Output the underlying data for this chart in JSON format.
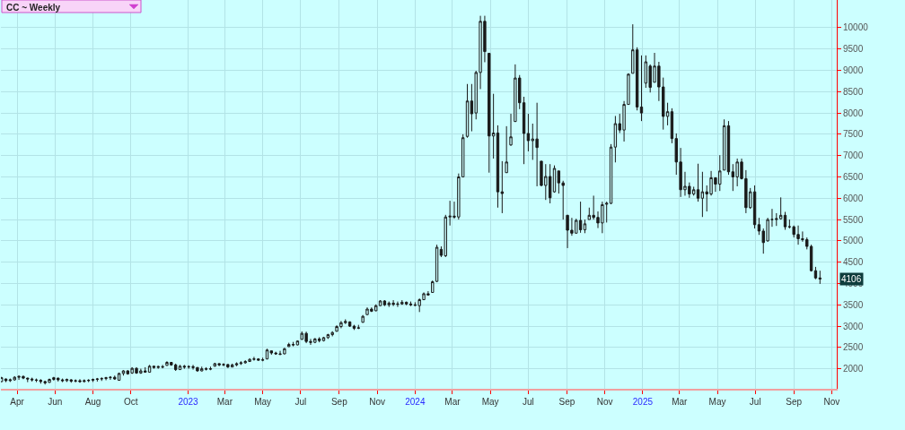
{
  "chart_data": {
    "type": "candlestick",
    "title": "CC ~ Weekly",
    "color": "#1a1a1a",
    "grid": true,
    "xlim": [
      "2022-03-06",
      "2025-11-09"
    ],
    "ylim": [
      1530,
      10650
    ],
    "xticks": [
      {
        "value": "2022-04-01",
        "label": "Apr"
      },
      {
        "value": "2022-06-01",
        "label": "Jun"
      },
      {
        "value": "2022-08-01",
        "label": "Aug"
      },
      {
        "value": "2022-10-01",
        "label": "Oct"
      },
      {
        "value": "2023-01-01",
        "label": "2023"
      },
      {
        "value": "2023-03-01",
        "label": "Mar"
      },
      {
        "value": "2023-05-01",
        "label": "May"
      },
      {
        "value": "2023-07-01",
        "label": "Jul"
      },
      {
        "value": "2023-09-01",
        "label": "Sep"
      },
      {
        "value": "2023-11-01",
        "label": "Nov"
      },
      {
        "value": "2024-01-01",
        "label": "2024"
      },
      {
        "value": "2024-03-01",
        "label": "Mar"
      },
      {
        "value": "2024-05-01",
        "label": "May"
      },
      {
        "value": "2024-07-01",
        "label": "Jul"
      },
      {
        "value": "2024-09-01",
        "label": "Sep"
      },
      {
        "value": "2024-11-01",
        "label": "Nov"
      },
      {
        "value": "2025-01-01",
        "label": "2025"
      },
      {
        "value": "2025-03-01",
        "label": "Mar"
      },
      {
        "value": "2025-05-01",
        "label": "May"
      },
      {
        "value": "2025-07-01",
        "label": "Jul"
      },
      {
        "value": "2025-09-01",
        "label": "Sep"
      },
      {
        "value": "2025-11-01",
        "label": "Nov"
      }
    ],
    "yticks": [
      2000,
      2500,
      3000,
      3500,
      4000,
      4500,
      5000,
      5500,
      6000,
      6500,
      7000,
      7500,
      8000,
      8500,
      9000,
      9500,
      10000
    ],
    "annotations": [
      "4106"
    ],
    "x": [
      "2022-03-07",
      "2022-03-14",
      "2022-03-21",
      "2022-03-28",
      "2022-04-04",
      "2022-04-11",
      "2022-04-18",
      "2022-04-25",
      "2022-05-02",
      "2022-05-09",
      "2022-05-16",
      "2022-05-23",
      "2022-05-30",
      "2022-06-06",
      "2022-06-13",
      "2022-06-20",
      "2022-06-27",
      "2022-07-04",
      "2022-07-11",
      "2022-07-18",
      "2022-07-25",
      "2022-08-01",
      "2022-08-08",
      "2022-08-15",
      "2022-08-22",
      "2022-08-29",
      "2022-09-05",
      "2022-09-12",
      "2022-09-19",
      "2022-09-26",
      "2022-10-03",
      "2022-10-10",
      "2022-10-17",
      "2022-10-24",
      "2022-10-31",
      "2022-11-07",
      "2022-11-14",
      "2022-11-21",
      "2022-11-28",
      "2022-12-05",
      "2022-12-12",
      "2022-12-19",
      "2022-12-26",
      "2023-01-02",
      "2023-01-09",
      "2023-01-16",
      "2023-01-23",
      "2023-01-30",
      "2023-02-06",
      "2023-02-13",
      "2023-02-20",
      "2023-02-27",
      "2023-03-06",
      "2023-03-13",
      "2023-03-20",
      "2023-03-27",
      "2023-04-03",
      "2023-04-10",
      "2023-04-17",
      "2023-04-24",
      "2023-05-01",
      "2023-05-08",
      "2023-05-15",
      "2023-05-22",
      "2023-05-29",
      "2023-06-05",
      "2023-06-12",
      "2023-06-19",
      "2023-06-26",
      "2023-07-03",
      "2023-07-10",
      "2023-07-17",
      "2023-07-24",
      "2023-07-31",
      "2023-08-07",
      "2023-08-14",
      "2023-08-21",
      "2023-08-28",
      "2023-09-04",
      "2023-09-11",
      "2023-09-18",
      "2023-09-25",
      "2023-10-02",
      "2023-10-09",
      "2023-10-16",
      "2023-10-23",
      "2023-10-30",
      "2023-11-06",
      "2023-11-13",
      "2023-11-20",
      "2023-11-27",
      "2023-12-04",
      "2023-12-11",
      "2023-12-18",
      "2023-12-25",
      "2024-01-01",
      "2024-01-08",
      "2024-01-15",
      "2024-01-22",
      "2024-01-29",
      "2024-02-05",
      "2024-02-12",
      "2024-02-19",
      "2024-02-26",
      "2024-03-04",
      "2024-03-11",
      "2024-03-18",
      "2024-03-25",
      "2024-04-01",
      "2024-04-08",
      "2024-04-15",
      "2024-04-22",
      "2024-04-29",
      "2024-05-06",
      "2024-05-13",
      "2024-05-20",
      "2024-05-27",
      "2024-06-03",
      "2024-06-10",
      "2024-06-17",
      "2024-06-24",
      "2024-07-01",
      "2024-07-08",
      "2024-07-15",
      "2024-07-22",
      "2024-07-29",
      "2024-08-05",
      "2024-08-12",
      "2024-08-19",
      "2024-08-26",
      "2024-09-02",
      "2024-09-09",
      "2024-09-16",
      "2024-09-23",
      "2024-09-30",
      "2024-10-07",
      "2024-10-14",
      "2024-10-21",
      "2024-10-28",
      "2024-11-04",
      "2024-11-11",
      "2024-11-18",
      "2024-11-25",
      "2024-12-02",
      "2024-12-09",
      "2024-12-16",
      "2024-12-23",
      "2024-12-30",
      "2025-01-06",
      "2025-01-13",
      "2025-01-20",
      "2025-01-27",
      "2025-02-03",
      "2025-02-10",
      "2025-02-17",
      "2025-02-24",
      "2025-03-03",
      "2025-03-10",
      "2025-03-17",
      "2025-03-24",
      "2025-03-31",
      "2025-04-07",
      "2025-04-14",
      "2025-04-21",
      "2025-04-28",
      "2025-05-05",
      "2025-05-12",
      "2025-05-19",
      "2025-05-26",
      "2025-06-02",
      "2025-06-09",
      "2025-06-16",
      "2025-06-23",
      "2025-06-30",
      "2025-07-07",
      "2025-07-14",
      "2025-07-21",
      "2025-07-28",
      "2025-08-04",
      "2025-08-11",
      "2025-08-18",
      "2025-08-25",
      "2025-09-01",
      "2025-09-08",
      "2025-09-15",
      "2025-09-22",
      "2025-09-29",
      "2025-10-06",
      "2025-10-13"
    ],
    "ohlc": [
      [
        1700,
        1810,
        1686,
        1790
      ],
      [
        1760,
        1770,
        1686,
        1720
      ],
      [
        1720,
        1770,
        1690,
        1740
      ],
      [
        1740,
        1826,
        1721,
        1800
      ],
      [
        1800,
        1840,
        1740,
        1820
      ],
      [
        1820,
        1840,
        1756,
        1780
      ],
      [
        1780,
        1791,
        1686,
        1760
      ],
      [
        1760,
        1791,
        1700,
        1740
      ],
      [
        1740,
        1770,
        1686,
        1730
      ],
      [
        1730,
        1756,
        1651,
        1700
      ],
      [
        1700,
        1721,
        1630,
        1670
      ],
      [
        1680,
        1770,
        1672,
        1750
      ],
      [
        1750,
        1810,
        1721,
        1790
      ],
      [
        1780,
        1791,
        1700,
        1740
      ],
      [
        1740,
        1770,
        1686,
        1720
      ],
      [
        1720,
        1770,
        1690,
        1750
      ],
      [
        1740,
        1756,
        1672,
        1710
      ],
      [
        1710,
        1750,
        1680,
        1720
      ],
      [
        1720,
        1756,
        1672,
        1700
      ],
      [
        1700,
        1750,
        1680,
        1720
      ],
      [
        1720,
        1756,
        1686,
        1730
      ],
      [
        1730,
        1770,
        1690,
        1750
      ],
      [
        1750,
        1784,
        1700,
        1760
      ],
      [
        1760,
        1800,
        1714,
        1770
      ],
      [
        1770,
        1810,
        1730,
        1790
      ],
      [
        1790,
        1826,
        1740,
        1800
      ],
      [
        1800,
        1840,
        1740,
        1760
      ],
      [
        1730,
        1910,
        1720,
        1890
      ],
      [
        1890,
        1966,
        1840,
        1950
      ],
      [
        1950,
        1966,
        1861,
        1880
      ],
      [
        1900,
        2036,
        1880,
        2010
      ],
      [
        2010,
        2036,
        1880,
        1900
      ],
      [
        1900,
        2001,
        1880,
        1950
      ],
      [
        1950,
        2036,
        1910,
        1920
      ],
      [
        1920,
        2090,
        1910,
        2060
      ],
      [
        2060,
        2070,
        2001,
        2030
      ],
      [
        2030,
        2070,
        2001,
        2050
      ],
      [
        2050,
        2090,
        2010,
        2040
      ],
      [
        2080,
        2176,
        2070,
        2150
      ],
      [
        2150,
        2160,
        2070,
        2090
      ],
      [
        2090,
        2120,
        1950,
        1980
      ],
      [
        1980,
        2090,
        1980,
        2060
      ],
      [
        2060,
        2090,
        2000,
        2040
      ],
      [
        2040,
        2080,
        2000,
        2050
      ],
      [
        2050,
        2090,
        1980,
        2030
      ],
      [
        2030,
        2036,
        1931,
        1950
      ],
      [
        1950,
        2050,
        1940,
        2000
      ],
      [
        2000,
        2036,
        1960,
        1990
      ],
      [
        1990,
        2050,
        1966,
        2000
      ],
      [
        2060,
        2140,
        2050,
        2120
      ],
      [
        2120,
        2130,
        2060,
        2090
      ],
      [
        2090,
        2130,
        2060,
        2100
      ],
      [
        2100,
        2110,
        2020,
        2040
      ],
      [
        2040,
        2120,
        2036,
        2090
      ],
      [
        2090,
        2150,
        2060,
        2120
      ],
      [
        2120,
        2176,
        2090,
        2140
      ],
      [
        2140,
        2200,
        2120,
        2170
      ],
      [
        2170,
        2246,
        2160,
        2220
      ],
      [
        2220,
        2280,
        2190,
        2230
      ],
      [
        2230,
        2246,
        2190,
        2200
      ],
      [
        2200,
        2260,
        2176,
        2210
      ],
      [
        2230,
        2470,
        2220,
        2440
      ],
      [
        2420,
        2420,
        2330,
        2370
      ],
      [
        2370,
        2400,
        2330,
        2350
      ],
      [
        2350,
        2420,
        2316,
        2340
      ],
      [
        2350,
        2490,
        2340,
        2470
      ],
      [
        2520,
        2610,
        2510,
        2570
      ],
      [
        2570,
        2630,
        2526,
        2560
      ],
      [
        2560,
        2666,
        2550,
        2650
      ],
      [
        2690,
        2876,
        2680,
        2830
      ],
      [
        2830,
        2870,
        2600,
        2640
      ],
      [
        2640,
        2700,
        2560,
        2620
      ],
      [
        2620,
        2720,
        2600,
        2700
      ],
      [
        2700,
        2740,
        2620,
        2660
      ],
      [
        2660,
        2750,
        2640,
        2730
      ],
      [
        2730,
        2820,
        2700,
        2800
      ],
      [
        2800,
        2880,
        2760,
        2850
      ],
      [
        2880,
        3020,
        2870,
        2990
      ],
      [
        2990,
        3120,
        2950,
        3080
      ],
      [
        3080,
        3160,
        3050,
        3110
      ],
      [
        3100,
        3110,
        2980,
        3000
      ],
      [
        3000,
        3030,
        2910,
        2950
      ],
      [
        2950,
        3030,
        2930,
        2960
      ],
      [
        3090,
        3260,
        3080,
        3230
      ],
      [
        3270,
        3440,
        3260,
        3400
      ],
      [
        3400,
        3440,
        3330,
        3350
      ],
      [
        3360,
        3510,
        3350,
        3480
      ],
      [
        3480,
        3610,
        3470,
        3590
      ],
      [
        3590,
        3610,
        3470,
        3500
      ],
      [
        3500,
        3577,
        3450,
        3540
      ],
      [
        3540,
        3610,
        3470,
        3510
      ],
      [
        3510,
        3577,
        3450,
        3520
      ],
      [
        3520,
        3610,
        3500,
        3560
      ],
      [
        3560,
        3577,
        3490,
        3520
      ],
      [
        3520,
        3577,
        3470,
        3500
      ],
      [
        3500,
        3560,
        3470,
        3490
      ],
      [
        3480,
        3650,
        3330,
        3620
      ],
      [
        3620,
        3790,
        3610,
        3760
      ],
      [
        3760,
        3820,
        3720,
        3730
      ],
      [
        3790,
        4070,
        3780,
        4040
      ],
      [
        4050,
        4910,
        4030,
        4850
      ],
      [
        4800,
        4870,
        4620,
        4660
      ],
      [
        4650,
        5610,
        4620,
        5560
      ],
      [
        5560,
        5940,
        5360,
        5580
      ],
      [
        5580,
        5920,
        5520,
        5560
      ],
      [
        5560,
        6580,
        5500,
        6500
      ],
      [
        6500,
        7500,
        6490,
        7420
      ],
      [
        7450,
        8680,
        7420,
        8280
      ],
      [
        8280,
        8680,
        7570,
        7980
      ],
      [
        8000,
        8990,
        7850,
        8950
      ],
      [
        8950,
        10280,
        8560,
        10150
      ],
      [
        10150,
        10280,
        9190,
        9440
      ],
      [
        9400,
        9410,
        6600,
        7460
      ],
      [
        7460,
        8450,
        6930,
        7530
      ],
      [
        7530,
        7710,
        5780,
        6150
      ],
      [
        6150,
        6870,
        5650,
        6110
      ],
      [
        6600,
        7690,
        6600,
        6850
      ],
      [
        7250,
        7980,
        7230,
        7440
      ],
      [
        7800,
        9140,
        7790,
        8820
      ],
      [
        8820,
        8890,
        8090,
        8240
      ],
      [
        8240,
        8380,
        6800,
        7520
      ],
      [
        7520,
        7980,
        7100,
        7350
      ],
      [
        7350,
        7750,
        6900,
        7390
      ],
      [
        7390,
        8240,
        6280,
        7190
      ],
      [
        6870,
        6870,
        6280,
        6300
      ],
      [
        6300,
        6800,
        5960,
        6510
      ],
      [
        6510,
        6800,
        5880,
        6010
      ],
      [
        6150,
        6770,
        6130,
        6700
      ],
      [
        6640,
        6640,
        6110,
        6360
      ],
      [
        6360,
        6410,
        5500,
        6300
      ],
      [
        5600,
        5610,
        4830,
        5250
      ],
      [
        5250,
        5540,
        5120,
        5180
      ],
      [
        5180,
        5520,
        5180,
        5480
      ],
      [
        5480,
        5920,
        5190,
        5260
      ],
      [
        5260,
        5500,
        5180,
        5400
      ],
      [
        5500,
        5780,
        5500,
        5600
      ],
      [
        5600,
        6060,
        5500,
        5550
      ],
      [
        5550,
        5690,
        5300,
        5420
      ],
      [
        5420,
        5920,
        5180,
        5850
      ],
      [
        5860,
        5920,
        5430,
        5880
      ],
      [
        5880,
        7270,
        5860,
        7200
      ],
      [
        7200,
        7930,
        6840,
        7750
      ],
      [
        7750,
        7980,
        7530,
        7600
      ],
      [
        7600,
        8280,
        7330,
        8200
      ],
      [
        8200,
        8930,
        8200,
        8910
      ],
      [
        8930,
        10080,
        8930,
        9480
      ],
      [
        9480,
        9540,
        8060,
        8140
      ],
      [
        8140,
        9350,
        7810,
        8000
      ],
      [
        8700,
        9350,
        8590,
        9200
      ],
      [
        9100,
        9140,
        8480,
        8600
      ],
      [
        8720,
        9410,
        8720,
        9100
      ],
      [
        9100,
        9200,
        8280,
        8610
      ],
      [
        8610,
        8830,
        7610,
        7920
      ],
      [
        7920,
        8240,
        7710,
        8030
      ],
      [
        8030,
        8110,
        7290,
        7400
      ],
      [
        7400,
        7520,
        6550,
        6850
      ],
      [
        6850,
        7180,
        6030,
        6200
      ],
      [
        6200,
        6620,
        6060,
        6280
      ],
      [
        6280,
        6370,
        6010,
        6100
      ],
      [
        6100,
        6270,
        6060,
        6200
      ],
      [
        6200,
        6810,
        5920,
        6000
      ],
      [
        6000,
        6620,
        5560,
        6150
      ],
      [
        6150,
        6300,
        5690,
        6100
      ],
      [
        6100,
        6640,
        6060,
        6480
      ],
      [
        6480,
        6480,
        6150,
        6330
      ],
      [
        6330,
        7010,
        6170,
        6640
      ],
      [
        6660,
        7850,
        6660,
        7700
      ],
      [
        7700,
        7810,
        6550,
        6620
      ],
      [
        6620,
        6800,
        6170,
        6500
      ],
      [
        6500,
        6930,
        6280,
        6850
      ],
      [
        6850,
        6930,
        6440,
        6460
      ],
      [
        6460,
        6660,
        5650,
        5780
      ],
      [
        5780,
        6240,
        5750,
        6150
      ],
      [
        6150,
        6300,
        5290,
        5380
      ],
      [
        5380,
        5540,
        5140,
        5230
      ],
      [
        5230,
        5290,
        4700,
        4960
      ],
      [
        5000,
        5540,
        4980,
        5500
      ],
      [
        5500,
        5750,
        5330,
        5500
      ],
      [
        5500,
        5650,
        5350,
        5520
      ],
      [
        5520,
        6020,
        5500,
        5600
      ],
      [
        5600,
        5680,
        5260,
        5330
      ],
      [
        5330,
        5500,
        5290,
        5330
      ],
      [
        5330,
        5360,
        5080,
        5150
      ],
      [
        5150,
        5360,
        4910,
        5050
      ],
      [
        5050,
        5220,
        4980,
        5030
      ],
      [
        5030,
        5080,
        4800,
        4870
      ],
      [
        4870,
        4910,
        4280,
        4300
      ],
      [
        4300,
        4390,
        4100,
        4130
      ],
      [
        4130,
        4300,
        3990,
        4106
      ]
    ]
  }
}
